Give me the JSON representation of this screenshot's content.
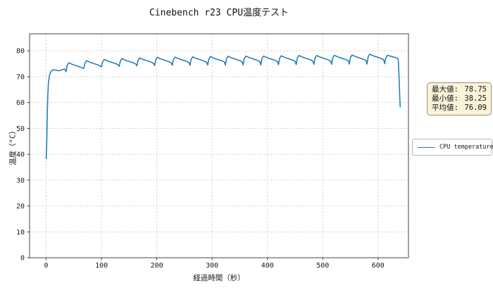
{
  "title": "Cinebench r23 CPU温度テスト",
  "colors": {
    "line": "#1f77b4",
    "grid": "#c9c9c9",
    "spine": "#555555",
    "stats_bg": "#faf3da",
    "stats_border": "#9a8f6e",
    "legend_border": "#b7b7b7"
  },
  "stats_box": {
    "rows": [
      {
        "label": "最大値:",
        "value": "78.75"
      },
      {
        "label": "最小値:",
        "value": "38.25"
      },
      {
        "label": "平均値:",
        "value": "76.09"
      }
    ]
  },
  "legend": {
    "label": "CPU temperature"
  },
  "chart_data": {
    "type": "line",
    "title": "Cinebench r23 CPU温度テスト",
    "xlabel": "経過時間（秒）",
    "ylabel": "温度（°C）",
    "xlim": [
      -30,
      655
    ],
    "ylim": [
      0,
      86.6
    ],
    "xticks": [
      0,
      100,
      200,
      300,
      400,
      500,
      600
    ],
    "yticks": [
      0,
      10,
      20,
      30,
      40,
      50,
      60,
      70,
      80
    ],
    "grid": true,
    "legend_position": "right-outside",
    "stats": {
      "max": 78.75,
      "min": 38.25,
      "mean": 76.09
    },
    "series": [
      {
        "name": "CPU temperature",
        "color": "#1f77b4",
        "points": [
          [
            0,
            38.25
          ],
          [
            1,
            44
          ],
          [
            2,
            55
          ],
          [
            3,
            63
          ],
          [
            4,
            67.5
          ],
          [
            6,
            70.5
          ],
          [
            9,
            72.2
          ],
          [
            13,
            72.7
          ],
          [
            18,
            72.5
          ],
          [
            23,
            72.3
          ],
          [
            28,
            72.6
          ],
          [
            33,
            73.0
          ],
          [
            35,
            72.5
          ],
          [
            36,
            71.9
          ],
          [
            38,
            74.4
          ],
          [
            41,
            75.4
          ],
          [
            47,
            74.8
          ],
          [
            54,
            74.3
          ],
          [
            61,
            73.8
          ],
          [
            66,
            73.3
          ],
          [
            68,
            73.2
          ],
          [
            70,
            75.2
          ],
          [
            73,
            76.2
          ],
          [
            79,
            75.6
          ],
          [
            86,
            75.1
          ],
          [
            93,
            74.6
          ],
          [
            98,
            74.1
          ],
          [
            100,
            73.8
          ],
          [
            102,
            75.7
          ],
          [
            105,
            76.7
          ],
          [
            111,
            76.1
          ],
          [
            118,
            75.6
          ],
          [
            125,
            75.1
          ],
          [
            130,
            74.6
          ],
          [
            132,
            74.0
          ],
          [
            134,
            76.0
          ],
          [
            137,
            77.0
          ],
          [
            143,
            76.4
          ],
          [
            150,
            75.9
          ],
          [
            157,
            75.4
          ],
          [
            162,
            74.9
          ],
          [
            164,
            74.2
          ],
          [
            166,
            76.3
          ],
          [
            169,
            77.3
          ],
          [
            175,
            76.7
          ],
          [
            182,
            76.2
          ],
          [
            189,
            75.7
          ],
          [
            194,
            75.2
          ],
          [
            196,
            74.3
          ],
          [
            198,
            76.5
          ],
          [
            201,
            77.5
          ],
          [
            207,
            76.9
          ],
          [
            214,
            76.4
          ],
          [
            221,
            75.9
          ],
          [
            226,
            75.4
          ],
          [
            228,
            74.4
          ],
          [
            230,
            76.6
          ],
          [
            233,
            77.6
          ],
          [
            239,
            77.0
          ],
          [
            246,
            76.5
          ],
          [
            253,
            76.0
          ],
          [
            258,
            75.5
          ],
          [
            260,
            74.4
          ],
          [
            262,
            76.7
          ],
          [
            265,
            77.7
          ],
          [
            271,
            77.1
          ],
          [
            278,
            76.6
          ],
          [
            285,
            76.1
          ],
          [
            290,
            75.6
          ],
          [
            292,
            74.5
          ],
          [
            294,
            76.8
          ],
          [
            297,
            77.8
          ],
          [
            303,
            77.2
          ],
          [
            310,
            76.7
          ],
          [
            317,
            76.2
          ],
          [
            322,
            75.7
          ],
          [
            324,
            74.5
          ],
          [
            326,
            76.9
          ],
          [
            329,
            77.9
          ],
          [
            335,
            77.3
          ],
          [
            342,
            76.8
          ],
          [
            349,
            76.3
          ],
          [
            354,
            75.8
          ],
          [
            356,
            74.6
          ],
          [
            358,
            77.0
          ],
          [
            361,
            78.0
          ],
          [
            367,
            77.4
          ],
          [
            374,
            76.9
          ],
          [
            381,
            76.4
          ],
          [
            386,
            75.9
          ],
          [
            388,
            74.6
          ],
          [
            390,
            77.0
          ],
          [
            393,
            78.0
          ],
          [
            399,
            77.4
          ],
          [
            406,
            76.9
          ],
          [
            413,
            76.4
          ],
          [
            418,
            75.9
          ],
          [
            420,
            74.7
          ],
          [
            422,
            77.1
          ],
          [
            425,
            78.1
          ],
          [
            431,
            77.5
          ],
          [
            438,
            77.0
          ],
          [
            445,
            76.5
          ],
          [
            450,
            76.0
          ],
          [
            452,
            74.7
          ],
          [
            454,
            77.2
          ],
          [
            457,
            78.2
          ],
          [
            463,
            77.6
          ],
          [
            470,
            77.1
          ],
          [
            477,
            76.6
          ],
          [
            482,
            76.1
          ],
          [
            484,
            74.8
          ],
          [
            486,
            77.2
          ],
          [
            489,
            78.2
          ],
          [
            495,
            77.6
          ],
          [
            502,
            77.1
          ],
          [
            509,
            76.6
          ],
          [
            514,
            76.1
          ],
          [
            516,
            74.8
          ],
          [
            518,
            77.3
          ],
          [
            521,
            78.3
          ],
          [
            527,
            77.7
          ],
          [
            534,
            77.2
          ],
          [
            541,
            76.7
          ],
          [
            546,
            76.2
          ],
          [
            548,
            74.9
          ],
          [
            550,
            77.4
          ],
          [
            553,
            78.4
          ],
          [
            559,
            77.8
          ],
          [
            566,
            77.3
          ],
          [
            573,
            76.8
          ],
          [
            578,
            76.3
          ],
          [
            580,
            74.9
          ],
          [
            582,
            77.7
          ],
          [
            585,
            78.75
          ],
          [
            591,
            78.1
          ],
          [
            598,
            77.6
          ],
          [
            605,
            77.1
          ],
          [
            610,
            76.6
          ],
          [
            612,
            75.0
          ],
          [
            614,
            77.3
          ],
          [
            617,
            78.3
          ],
          [
            623,
            77.9
          ],
          [
            628,
            77.6
          ],
          [
            632,
            77.4
          ],
          [
            635,
            77.2
          ],
          [
            636.5,
            76.5
          ],
          [
            638,
            70
          ],
          [
            639.5,
            61
          ],
          [
            640,
            58.4
          ]
        ]
      }
    ]
  }
}
